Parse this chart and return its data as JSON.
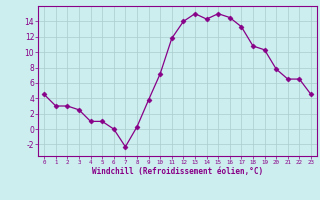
{
  "x": [
    0,
    1,
    2,
    3,
    4,
    5,
    6,
    7,
    8,
    9,
    10,
    11,
    12,
    13,
    14,
    15,
    16,
    17,
    18,
    19,
    20,
    21,
    22,
    23
  ],
  "y": [
    4.5,
    3.0,
    3.0,
    2.5,
    1.0,
    1.0,
    0.0,
    -2.3,
    0.3,
    3.8,
    7.2,
    11.8,
    14.0,
    15.0,
    14.3,
    15.0,
    14.5,
    13.3,
    10.8,
    10.3,
    7.8,
    6.5,
    6.5,
    4.5
  ],
  "line_color": "#880088",
  "marker": "D",
  "marker_size": 2.5,
  "bg_color": "#cceeee",
  "grid_color": "#aacccc",
  "xlabel": "Windchill (Refroidissement éolien,°C)",
  "xlabel_color": "#880088",
  "tick_color": "#880088",
  "spine_color": "#880088",
  "ylim": [
    -3.5,
    16
  ],
  "xlim": [
    -0.5,
    23.5
  ],
  "yticks": [
    -2,
    0,
    2,
    4,
    6,
    8,
    10,
    12,
    14
  ],
  "xticks": [
    0,
    1,
    2,
    3,
    4,
    5,
    6,
    7,
    8,
    9,
    10,
    11,
    12,
    13,
    14,
    15,
    16,
    17,
    18,
    19,
    20,
    21,
    22,
    23
  ]
}
